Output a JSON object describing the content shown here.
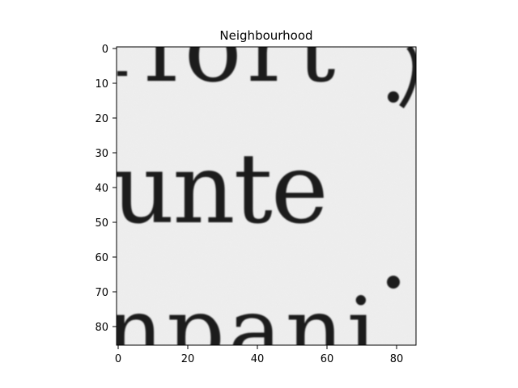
{
  "figure": {
    "title": "Neighbourhood",
    "image_text_lines": [
      "fort",
      "unte",
      "npani"
    ],
    "colors": {
      "background": "#ffffff",
      "paper": "#ececec",
      "ink": "#1c1c1c",
      "axis": "#000000"
    },
    "x_axis": {
      "range": [
        0,
        86
      ],
      "ticks": [
        0,
        20,
        40,
        60,
        80
      ]
    },
    "y_axis": {
      "range": [
        0,
        86
      ],
      "inverted": true,
      "ticks": [
        0,
        10,
        20,
        30,
        40,
        50,
        60,
        70,
        80
      ]
    }
  }
}
